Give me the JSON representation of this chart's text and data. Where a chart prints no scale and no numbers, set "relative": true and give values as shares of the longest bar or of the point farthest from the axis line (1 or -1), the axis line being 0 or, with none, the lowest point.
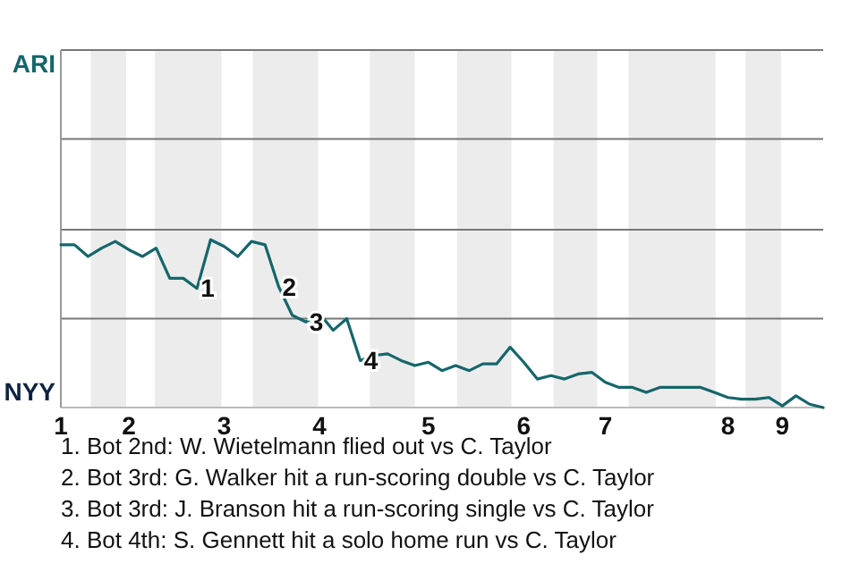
{
  "chart_data": {
    "type": "line",
    "relative": true,
    "categories": [
      "1",
      null,
      null,
      null,
      null,
      "2",
      null,
      null,
      null,
      null,
      null,
      null,
      "3",
      null,
      null,
      null,
      null,
      null,
      null,
      "4",
      null,
      null,
      null,
      null,
      null,
      null,
      null,
      "5",
      null,
      null,
      null,
      null,
      null,
      null,
      "6",
      null,
      null,
      null,
      null,
      null,
      "7",
      null,
      null,
      null,
      null,
      null,
      null,
      null,
      null,
      "8",
      null,
      null,
      null,
      "9",
      null,
      null,
      null
    ],
    "series": [
      {
        "color": "#15666b",
        "values": [
          0.97,
          0.97,
          0.9,
          0.95,
          0.99,
          0.94,
          0.9,
          0.95,
          0.77,
          0.77,
          0.71,
          1.0,
          0.96,
          0.9,
          0.99,
          0.97,
          0.72,
          0.55,
          0.51,
          0.56,
          0.46,
          0.53,
          0.28,
          0.31,
          0.32,
          0.28,
          0.25,
          0.27,
          0.22,
          0.25,
          0.22,
          0.26,
          0.26,
          0.36,
          0.27,
          0.17,
          0.19,
          0.17,
          0.2,
          0.21,
          0.15,
          0.12,
          0.12,
          0.09,
          0.12,
          0.12,
          0.12,
          0.12,
          0.09,
          0.06,
          0.05,
          0.05,
          0.06,
          0.01,
          0.07,
          0.02,
          0.0
        ]
      }
    ],
    "ref_lines": [
      {
        "axis": "y",
        "value": 0.53,
        "color": "#777777"
      },
      {
        "axis": "y",
        "value": 1.06,
        "color": "#777777"
      },
      {
        "axis": "y",
        "value": 1.6,
        "color": "#777777"
      },
      {
        "axis": "y",
        "value": 2.13,
        "color": "#777777"
      }
    ],
    "annotations": [
      "ARI",
      "NYY",
      {
        "text": "1",
        "y": 0.71
      },
      {
        "text": "2",
        "y": 0.72
      },
      {
        "text": "3",
        "y": 0.51
      },
      {
        "text": "4",
        "y": 0.28
      },
      "1. Bot 2nd: W. Wietelmann flied out vs C. Taylor",
      "2. Bot 3rd: G. Walker hit a run-scoring double vs C. Taylor",
      "3. Bot 3rd: J. Branson hit a run-scoring single vs C. Taylor",
      "4. Bot 4th: S. Gennett hit a solo home run vs C. Taylor"
    ]
  }
}
